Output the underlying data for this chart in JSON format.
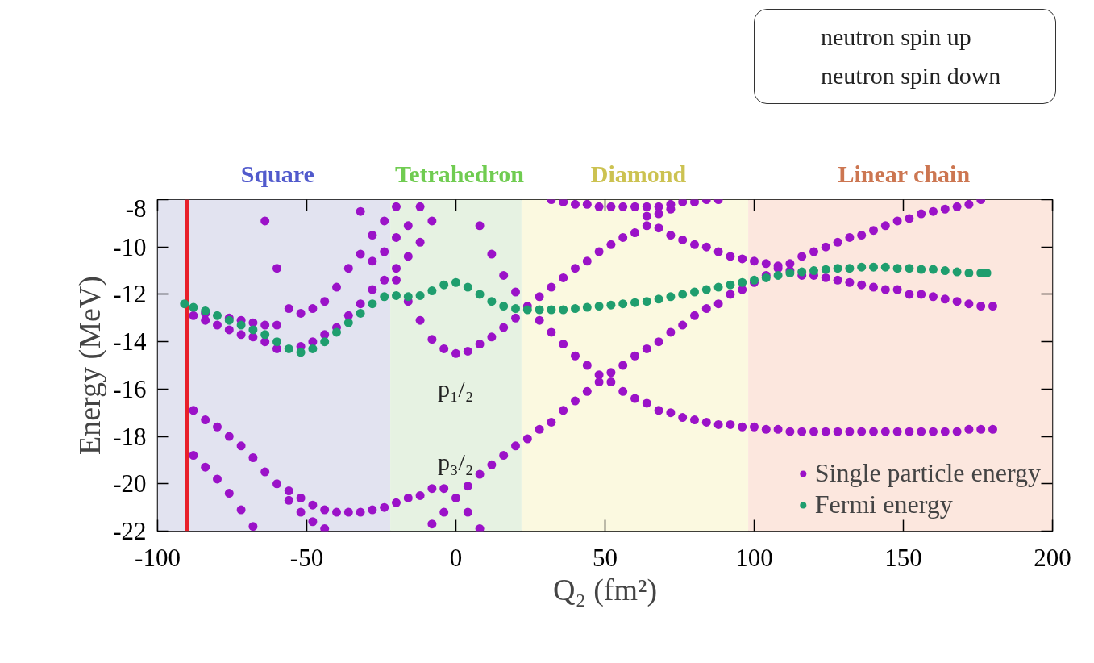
{
  "chart_data": {
    "type": "scatter",
    "xlabel": "Q₂ (fm²)",
    "ylabel": "Energy (MeV)",
    "xlim": [
      -100,
      200
    ],
    "xticks": [
      -100,
      -50,
      0,
      50,
      100,
      150,
      200
    ],
    "ylim": [
      -22,
      -8
    ],
    "yticks": [
      -8,
      -10,
      -12,
      -14,
      -16,
      -18,
      -20,
      -22
    ],
    "grid": false,
    "legend": "bottom right",
    "marker": "circle",
    "annotations": [
      "neutron spin up",
      "neutron spin down",
      "p₁/₂",
      "p₃/₂"
    ],
    "bands": [
      {
        "axis": "x",
        "from": -100,
        "to": -22,
        "label": "Square",
        "color": "#e2e3f0"
      },
      {
        "axis": "x",
        "from": -22,
        "to": 22,
        "label": "Tetrahedron",
        "color": "#e6f2e2"
      },
      {
        "axis": "x",
        "from": 22,
        "to": 98,
        "label": "Diamond",
        "color": "#fbf9e0"
      },
      {
        "axis": "x",
        "from": 98,
        "to": 200,
        "label": "Linear chain",
        "color": "#fce7de"
      }
    ],
    "ref_lines": [
      {
        "axis": "x",
        "value": -90,
        "color": "#e8202a"
      }
    ],
    "series": [
      {
        "name": "Single particle energy",
        "color": "#9b12c8",
        "x": [
          -88,
          -84,
          -80,
          -76,
          -72,
          -68,
          -64,
          -60,
          -56,
          -52,
          -48,
          -44,
          -40,
          -36,
          -32,
          -28,
          -24,
          -20,
          -84,
          -80,
          -76,
          -72,
          -68,
          -64,
          -60,
          -56,
          -52,
          -48,
          -44,
          -40,
          -36,
          -32,
          -28,
          -24,
          -64,
          -60,
          -32,
          -28,
          -24,
          -20,
          -20,
          -20,
          -16,
          -16,
          -12,
          -12,
          -8,
          8,
          12,
          16,
          20,
          -16,
          -12,
          -8,
          -4,
          0,
          4,
          8,
          12,
          16,
          20,
          24,
          28,
          32,
          36,
          40,
          44,
          48,
          52,
          56,
          60,
          64,
          68,
          72,
          76,
          80,
          84,
          88,
          92,
          96,
          100,
          104,
          108,
          112,
          116,
          120,
          124,
          128,
          132,
          136,
          140,
          144,
          148,
          152,
          156,
          160,
          164,
          168,
          172,
          176,
          180,
          28,
          32,
          36,
          40,
          44,
          48,
          52,
          56,
          60,
          64,
          68,
          72,
          76,
          80,
          84,
          88,
          92,
          96,
          100,
          104,
          108,
          112,
          116,
          120,
          124,
          128,
          132,
          136,
          140,
          144,
          148,
          152,
          156,
          160,
          164,
          168,
          172,
          176,
          180,
          4,
          8,
          12,
          16,
          20,
          24,
          28,
          32,
          36,
          40,
          44,
          48,
          52,
          56,
          60,
          64,
          68,
          72,
          76,
          80,
          84,
          88,
          92,
          96,
          100,
          104,
          108,
          112,
          116,
          120,
          124,
          128,
          132,
          136,
          140,
          144,
          148,
          152,
          156,
          160,
          164,
          168,
          172,
          176,
          -88,
          -84,
          -80,
          -76,
          -72,
          -68,
          -64,
          -60,
          -56,
          -52,
          -48,
          -44,
          -40,
          -36,
          -32,
          -28,
          -24,
          -20,
          -16,
          -12,
          -8,
          -4,
          0,
          4,
          8,
          -88,
          -84,
          -80,
          -76,
          -72,
          -68,
          -56,
          -52,
          -48,
          -44,
          -8,
          -4,
          32,
          36,
          40,
          44,
          48,
          52,
          56,
          60,
          64,
          68,
          72,
          76,
          80,
          84,
          88,
          64,
          68,
          72
        ],
        "values": [
          -12.9,
          -13.1,
          -13.3,
          -13.5,
          -13.7,
          -13.8,
          -14.0,
          -14.3,
          null,
          -14.2,
          -14.0,
          -13.7,
          -13.4,
          -12.9,
          -12.4,
          -11.8,
          -11.4,
          -11.4,
          -12.8,
          null,
          -13.0,
          -13.1,
          -13.2,
          -13.3,
          -13.3,
          -12.6,
          -12.8,
          -12.6,
          -12.3,
          -11.7,
          -10.9,
          -10.3,
          -9.5,
          -8.9,
          -8.9,
          -10.9,
          -8.5,
          -10.6,
          -10.2,
          -10.9,
          -9.6,
          -8.3,
          -9.1,
          -10.4,
          -8.3,
          -9.8,
          -8.9,
          -9.1,
          -10.3,
          -11.2,
          -11.9,
          -12.3,
          -13.1,
          -13.9,
          -14.3,
          -14.5,
          -14.4,
          -14.1,
          -13.8,
          -13.4,
          -13.0,
          -12.5,
          -12.1,
          -11.7,
          -11.3,
          -10.9,
          -10.6,
          -10.2,
          -9.9,
          -9.6,
          -9.4,
          -9.1,
          -9.2,
          -9.5,
          -9.7,
          -9.9,
          -10.0,
          -10.2,
          -10.4,
          -10.5,
          -10.6,
          -10.7,
          -10.9,
          -11.0,
          -11.2,
          -11.2,
          -11.3,
          -11.4,
          -11.5,
          -11.6,
          -11.7,
          -11.8,
          -11.8,
          -12.0,
          -12.0,
          -12.1,
          -12.2,
          -12.3,
          -12.4,
          -12.5,
          -12.5,
          -13.1,
          -13.6,
          -14.1,
          -14.6,
          -15.0,
          -15.4,
          -15.7,
          -16.1,
          -16.4,
          -16.6,
          -16.9,
          -17.0,
          -17.2,
          -17.3,
          -17.4,
          -17.5,
          -17.5,
          -17.6,
          -17.6,
          -17.7,
          -17.7,
          -17.8,
          -17.8,
          -17.8,
          -17.8,
          -17.8,
          -17.8,
          -17.8,
          -17.8,
          -17.8,
          -17.8,
          -17.8,
          -17.8,
          -17.8,
          -17.8,
          -17.8,
          -17.7,
          -17.7,
          -17.7,
          -20.1,
          -19.6,
          -19.2,
          -18.8,
          -18.4,
          -18.1,
          -17.7,
          -17.4,
          -16.9,
          -16.5,
          -16.1,
          -15.7,
          -15.3,
          -15.0,
          -14.6,
          -14.3,
          -14.0,
          -13.6,
          -13.3,
          -12.9,
          -12.6,
          -12.4,
          -12.0,
          -11.8,
          -11.5,
          -11.2,
          -10.8,
          -10.7,
          -10.4,
          -10.2,
          -10.0,
          -9.8,
          -9.6,
          -9.5,
          -9.3,
          -9.1,
          -8.9,
          -8.8,
          -8.6,
          -8.5,
          -8.4,
          -8.3,
          -8.2,
          -8.0,
          -16.9,
          -17.3,
          -17.6,
          -18.0,
          -18.4,
          -18.9,
          -19.5,
          -20.0,
          -20.3,
          -20.6,
          -20.9,
          -21.1,
          -21.2,
          -21.2,
          -21.2,
          -21.1,
          -21.0,
          -20.8,
          -20.6,
          -20.5,
          -20.2,
          -20.2,
          -20.6,
          -21.2,
          -21.9,
          -18.8,
          -19.3,
          -19.8,
          -20.4,
          -21.1,
          -21.8,
          -20.7,
          -21.2,
          -21.6,
          -21.9,
          -21.7,
          -21.2,
          -8.0,
          -8.1,
          -8.2,
          -8.2,
          -8.3,
          -8.3,
          -8.3,
          -8.3,
          -8.3,
          -8.3,
          -8.2,
          -8.1,
          -8.1,
          -8.0,
          -8.0,
          -8.7,
          -8.6,
          -8.4
        ]
      },
      {
        "name": "Fermi energy",
        "color": "#1f9e6e",
        "x": [
          -91,
          -88,
          -84,
          -80,
          -76,
          -72,
          -68,
          -64,
          -60,
          -56,
          -52,
          -48,
          -44,
          -40,
          -36,
          -32,
          -28,
          -24,
          -20,
          -16,
          -12,
          -8,
          -4,
          0,
          4,
          8,
          12,
          16,
          20,
          24,
          28,
          32,
          36,
          40,
          44,
          48,
          52,
          56,
          60,
          64,
          68,
          72,
          76,
          80,
          84,
          88,
          92,
          96,
          100,
          104,
          108,
          112,
          116,
          120,
          124,
          128,
          132,
          136,
          140,
          144,
          148,
          152,
          156,
          160,
          164,
          168,
          172,
          176,
          178
        ],
        "values": [
          -12.4,
          -12.55,
          -12.7,
          -12.9,
          -13.1,
          -13.3,
          -13.5,
          -13.7,
          -14.0,
          -14.3,
          -14.45,
          -14.3,
          -14.0,
          -13.6,
          -13.2,
          -12.8,
          -12.4,
          -12.1,
          -12.05,
          -12.1,
          -12.05,
          -11.85,
          -11.6,
          -11.5,
          -11.7,
          -12.0,
          -12.3,
          -12.5,
          -12.6,
          -12.65,
          -12.65,
          -12.65,
          -12.65,
          -12.6,
          -12.55,
          -12.5,
          -12.45,
          -12.4,
          -12.35,
          -12.3,
          -12.2,
          -12.1,
          -12.0,
          -11.9,
          -11.8,
          -11.7,
          -11.6,
          -11.5,
          -11.4,
          -11.3,
          -11.2,
          -11.1,
          -11.05,
          -11.0,
          -10.95,
          -10.9,
          -10.9,
          -10.85,
          -10.85,
          -10.85,
          -10.9,
          -10.9,
          -10.95,
          -10.95,
          -11.0,
          -11.05,
          -11.1,
          -11.1,
          -11.1
        ]
      }
    ]
  }
}
